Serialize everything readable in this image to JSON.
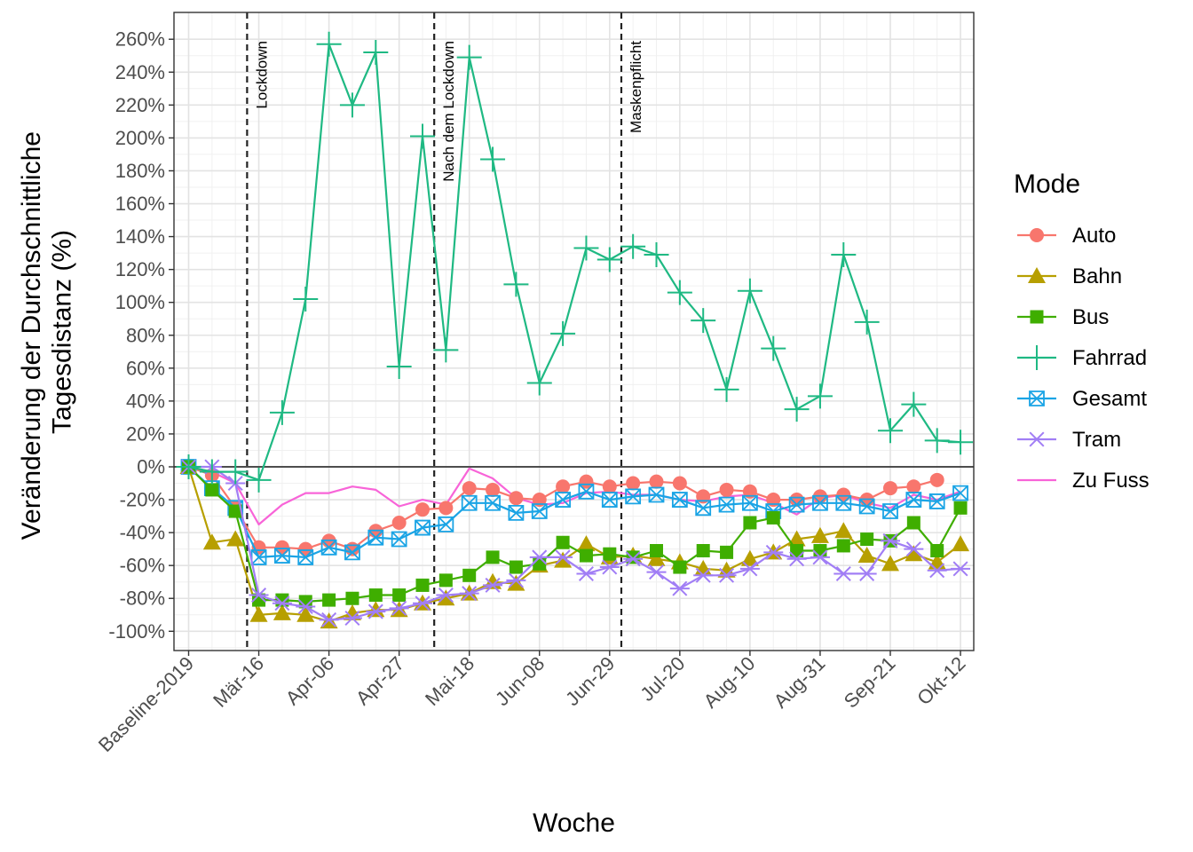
{
  "chart_data": {
    "type": "line",
    "title": "",
    "xlabel": "Woche",
    "ylabel_lines": [
      "Veränderung der Durchschnittliche",
      "Tagesdistanz (%)"
    ],
    "ylim": [
      -110,
      265
    ],
    "yticks": [
      -100,
      -80,
      -60,
      -40,
      -20,
      0,
      20,
      40,
      60,
      80,
      100,
      120,
      140,
      160,
      180,
      200,
      220,
      240,
      260
    ],
    "ytick_labels": [
      "-100%",
      "-80%",
      "-60%",
      "-40%",
      "-20%",
      "0%",
      "20%",
      "40%",
      "60%",
      "80%",
      "100%",
      "120%",
      "140%",
      "160%",
      "180%",
      "200%",
      "220%",
      "240%",
      "260%"
    ],
    "x_count": 34,
    "xticks": [
      {
        "index": 0,
        "label": "Baseline-2019"
      },
      {
        "index": 3,
        "label": "Mär-16"
      },
      {
        "index": 6,
        "label": "Apr-06"
      },
      {
        "index": 9,
        "label": "Apr-27"
      },
      {
        "index": 12,
        "label": "Mai-18"
      },
      {
        "index": 15,
        "label": "Jun-08"
      },
      {
        "index": 18,
        "label": "Jun-29"
      },
      {
        "index": 21,
        "label": "Jul-20"
      },
      {
        "index": 24,
        "label": "Aug-10"
      },
      {
        "index": 27,
        "label": "Aug-31"
      },
      {
        "index": 30,
        "label": "Sep-21"
      },
      {
        "index": 33,
        "label": "Okt-12"
      }
    ],
    "events": [
      {
        "index": 2.5,
        "label": "Lockdown"
      },
      {
        "index": 10.5,
        "label": "Nach dem Lockdown"
      },
      {
        "index": 18.5,
        "label": "Maskenpflicht"
      }
    ],
    "grid": true,
    "legend": {
      "title": "Mode",
      "position": "right"
    },
    "series": [
      {
        "name": "Auto",
        "color": "#F8766D",
        "marker": "circle",
        "values": [
          0,
          -5,
          -25,
          -49,
          -49,
          -50,
          -45,
          -50,
          -39,
          -34,
          -26,
          -25,
          -13,
          -14,
          -19,
          -20,
          -12,
          -9,
          -12,
          -10,
          -9,
          -10,
          -18,
          -14,
          -15,
          -20,
          -20,
          -18,
          -17,
          -20,
          -13,
          -12,
          -8,
          null
        ]
      },
      {
        "name": "Bahn",
        "color": "#B79F00",
        "marker": "triangle",
        "values": [
          0,
          -46,
          -44,
          -90,
          -89,
          -90,
          -94,
          -89,
          -87,
          -87,
          -83,
          -80,
          -77,
          -70,
          -71,
          -60,
          -57,
          -47,
          -55,
          -54,
          -56,
          -58,
          -62,
          -63,
          -56,
          -52,
          -44,
          -42,
          -39,
          -54,
          -59,
          -53,
          -58,
          -47
        ]
      },
      {
        "name": "Bus",
        "color": "#3FAE00",
        "marker": "square",
        "values": [
          0,
          -14,
          -27,
          -81,
          -81,
          -82,
          -81,
          -80,
          -78,
          -78,
          -72,
          -69,
          -66,
          -55,
          -61,
          -59,
          -46,
          -54,
          -53,
          -55,
          -51,
          -61,
          -51,
          -52,
          -34,
          -31,
          -51,
          -51,
          -48,
          -44,
          -45,
          -34,
          -51,
          -25
        ]
      },
      {
        "name": "Fahrrad",
        "color": "#1FB983",
        "marker": "plus",
        "values": [
          0,
          -3,
          -3,
          -8,
          33,
          102,
          257,
          220,
          252,
          61,
          201,
          71,
          249,
          187,
          111,
          51,
          81,
          133,
          126,
          134,
          129,
          106,
          89,
          47,
          107,
          72,
          35,
          43,
          129,
          88,
          22,
          38,
          16,
          15
        ]
      },
      {
        "name": "Gesamt",
        "color": "#1AA4E5",
        "marker": "boxcross",
        "values": [
          0,
          -13,
          -25,
          -55,
          -54,
          -55,
          -49,
          -52,
          -43,
          -44,
          -37,
          -35,
          -22,
          -22,
          -28,
          -27,
          -20,
          -15,
          -20,
          -18,
          -17,
          -20,
          -25,
          -23,
          -22,
          -27,
          -23,
          -22,
          -22,
          -24,
          -27,
          -20,
          -21,
          -16
        ]
      },
      {
        "name": "Tram",
        "color": "#A17EF5",
        "marker": "asterisk",
        "values": [
          0,
          0,
          -10,
          -78,
          -83,
          -85,
          -93,
          -92,
          -88,
          -86,
          -83,
          -78,
          -77,
          -72,
          -69,
          -55,
          -55,
          -65,
          -61,
          -56,
          -64,
          -74,
          -66,
          -66,
          -62,
          -52,
          -56,
          -55,
          -65,
          -65,
          -45,
          -50,
          -63,
          -62
        ]
      },
      {
        "name": "Zu Fuss",
        "color": "#F864D8",
        "marker": "none",
        "values": [
          0,
          -3,
          -10,
          -35,
          -23,
          -16,
          -16,
          -12,
          -14,
          -24,
          -20,
          -23,
          -1,
          -7,
          -19,
          -23,
          -22,
          -16,
          -15,
          -17,
          -17,
          -20,
          -21,
          -18,
          -17,
          -22,
          -29,
          -19,
          -17,
          -22,
          -25,
          -17,
          -20,
          -15
        ]
      }
    ]
  }
}
